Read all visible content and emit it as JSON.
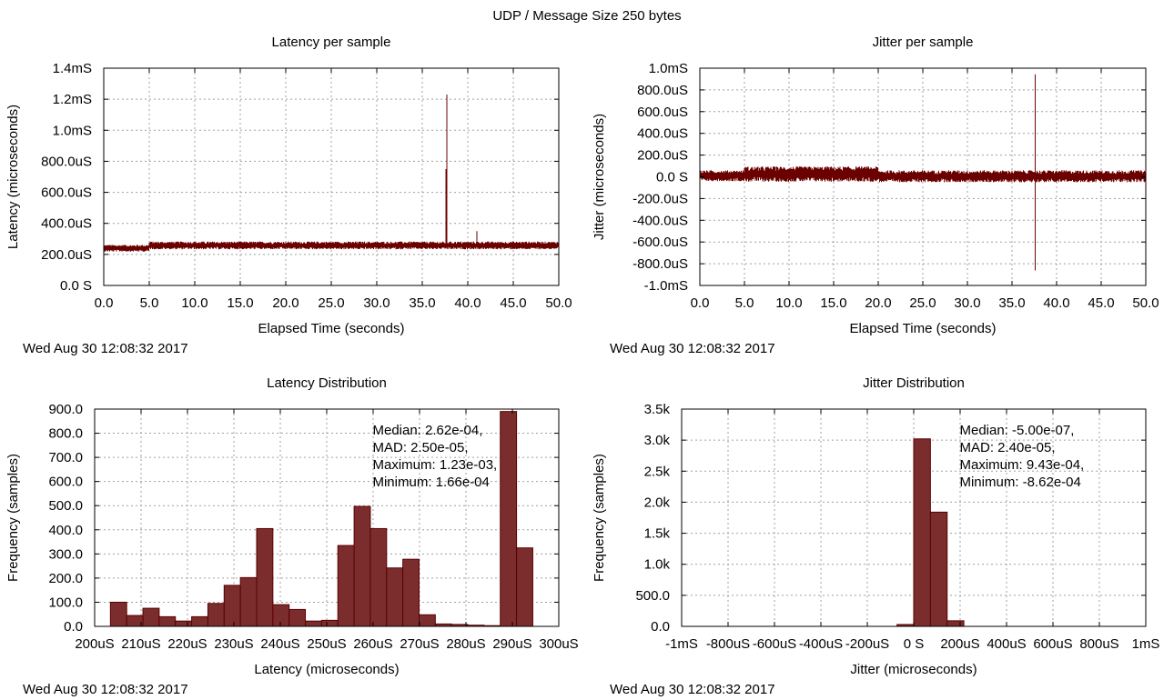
{
  "figure": {
    "title": "UDP / Message Size 250 bytes"
  },
  "colors": {
    "trace": "#6b0000",
    "bar_fill": "#7b2d2d",
    "bar_stroke": "#5a0000",
    "grid": "#a0a0a0"
  },
  "chart_data": [
    {
      "id": "latency-per-sample",
      "type": "line",
      "title": "Latency per sample",
      "xlabel": "Elapsed Time (seconds)",
      "ylabel": "Latency (microseconds)",
      "xlim": [
        0,
        50
      ],
      "ylim": [
        0,
        1400
      ],
      "xticks": [
        0,
        5,
        10,
        15,
        20,
        25,
        30,
        35,
        40,
        45,
        50
      ],
      "xtick_labels": [
        "0.0",
        "5.0",
        "10.0",
        "15.0",
        "20.0",
        "25.0",
        "30.0",
        "35.0",
        "40.0",
        "45.0",
        "50.0"
      ],
      "yticks": [
        0,
        200,
        400,
        600,
        800,
        1000,
        1200,
        1400
      ],
      "ytick_labels": [
        "0.0 S",
        "200.0uS",
        "400.0uS",
        "600.0uS",
        "800.0uS",
        "1.0mS",
        "1.2mS",
        "1.4mS"
      ],
      "series": [
        {
          "name": "latency",
          "segments": [
            {
              "x": [
                0.0,
                5.0
              ],
              "center": 240,
              "band": 22
            },
            {
              "x": [
                5.0,
                50.0
              ],
              "center": 258,
              "band": 25
            }
          ],
          "spikes": [
            {
              "x": 37.7,
              "y": 1230
            },
            {
              "x": 37.6,
              "y": 750
            },
            {
              "x": 41.0,
              "y": 350
            }
          ]
        }
      ],
      "timestamp": "Wed Aug 30 12:08:32 2017"
    },
    {
      "id": "jitter-per-sample",
      "type": "line",
      "title": "Jitter per sample",
      "xlabel": "Elapsed Time (seconds)",
      "ylabel": "Jitter (microseconds)",
      "xlim": [
        0,
        50
      ],
      "ylim": [
        -1000,
        1000
      ],
      "xticks": [
        0,
        5,
        10,
        15,
        20,
        25,
        30,
        35,
        40,
        45,
        50
      ],
      "xtick_labels": [
        "0.0",
        "5.0",
        "10.0",
        "15.0",
        "20.0",
        "25.0",
        "30.0",
        "35.0",
        "40.0",
        "45.0",
        "50.0"
      ],
      "yticks": [
        -1000,
        -800,
        -600,
        -400,
        -200,
        0,
        200,
        400,
        600,
        800,
        1000
      ],
      "ytick_labels": [
        "-1.0mS",
        "-800.0uS",
        "-600.0uS",
        "-400.0uS",
        "-200.0uS",
        "0.0 S",
        "200.0uS",
        "400.0uS",
        "600.0uS",
        "800.0uS",
        "1.0mS"
      ],
      "series": [
        {
          "name": "jitter",
          "segments": [
            {
              "x": [
                0.0,
                5.0
              ],
              "center": 10,
              "band": 50
            },
            {
              "x": [
                5.0,
                20.0
              ],
              "center": 25,
              "band": 70
            },
            {
              "x": [
                20.0,
                50.0
              ],
              "center": 5,
              "band": 55
            }
          ],
          "spikes": [
            {
              "x": 37.6,
              "y": 943
            },
            {
              "x": 37.6,
              "y": -862
            }
          ]
        }
      ],
      "timestamp": "Wed Aug 30 12:08:32 2017"
    },
    {
      "id": "latency-distribution",
      "type": "bar",
      "title": "Latency Distribution",
      "xlabel": "Latency (microseconds)",
      "ylabel": "Frequency (samples)",
      "xlim": [
        200,
        300
      ],
      "ylim": [
        0,
        900
      ],
      "xticks": [
        200,
        210,
        220,
        230,
        240,
        250,
        260,
        270,
        280,
        290,
        300
      ],
      "xtick_labels": [
        "200uS",
        "210uS",
        "220uS",
        "230uS",
        "240uS",
        "250uS",
        "260uS",
        "270uS",
        "280uS",
        "290uS",
        "300uS"
      ],
      "yticks": [
        0,
        100,
        200,
        300,
        400,
        500,
        600,
        700,
        800,
        900
      ],
      "ytick_labels": [
        "0.0",
        "100.0",
        "200.0",
        "300.0",
        "400.0",
        "500.0",
        "600.0",
        "700.0",
        "800.0",
        "900.0"
      ],
      "bin_width": 3.5,
      "bin_start": [
        203.4,
        206.9,
        210.4,
        213.9,
        217.4,
        220.9,
        224.4,
        227.9,
        231.4,
        234.9,
        238.4,
        241.9,
        245.4,
        248.9,
        252.4,
        255.9,
        259.4,
        262.9,
        266.4,
        269.9,
        273.4,
        276.9,
        280.4,
        283.9,
        287.4,
        290.9
      ],
      "values": [
        100,
        45,
        75,
        40,
        22,
        40,
        95,
        170,
        202,
        405,
        90,
        70,
        22,
        25,
        335,
        497,
        405,
        242,
        278,
        48,
        10,
        8,
        5,
        3,
        890,
        325
      ],
      "annotation": [
        "Median: 2.62e-04,",
        "MAD: 2.50e-05,",
        "Maximum: 1.23e-03,",
        "Minimum: 1.66e-04"
      ],
      "timestamp": "Wed Aug 30 12:08:32 2017"
    },
    {
      "id": "jitter-distribution",
      "type": "bar",
      "title": "Jitter Distribution",
      "xlabel": "Jitter (microseconds)",
      "ylabel": "Frequency (samples)",
      "xlim": [
        -1000,
        1000
      ],
      "ylim": [
        0,
        3500
      ],
      "xticks": [
        -1000,
        -800,
        -600,
        -400,
        -200,
        0,
        200,
        400,
        600,
        800,
        1000
      ],
      "xtick_labels": [
        "-1mS",
        "-800uS",
        "-600uS",
        "-400uS",
        "-200uS",
        "0 S",
        "200uS",
        "400uS",
        "600uS",
        "800uS",
        "1mS"
      ],
      "yticks": [
        0,
        500,
        1000,
        1500,
        2000,
        2500,
        3000,
        3500
      ],
      "ytick_labels": [
        "0.0",
        "500.0",
        "1.0k",
        "1.5k",
        "2.0k",
        "2.5k",
        "3.0k",
        "3.5k"
      ],
      "bin_width": 72,
      "bin_start": [
        -72,
        0,
        72,
        144
      ],
      "values": [
        30,
        3020,
        1840,
        90
      ],
      "annotation": [
        "Median: -5.00e-07,",
        "MAD: 2.40e-05,",
        "Maximum: 9.43e-04,",
        "Minimum: -8.62e-04"
      ],
      "timestamp": "Wed Aug 30 12:08:32 2017"
    }
  ]
}
